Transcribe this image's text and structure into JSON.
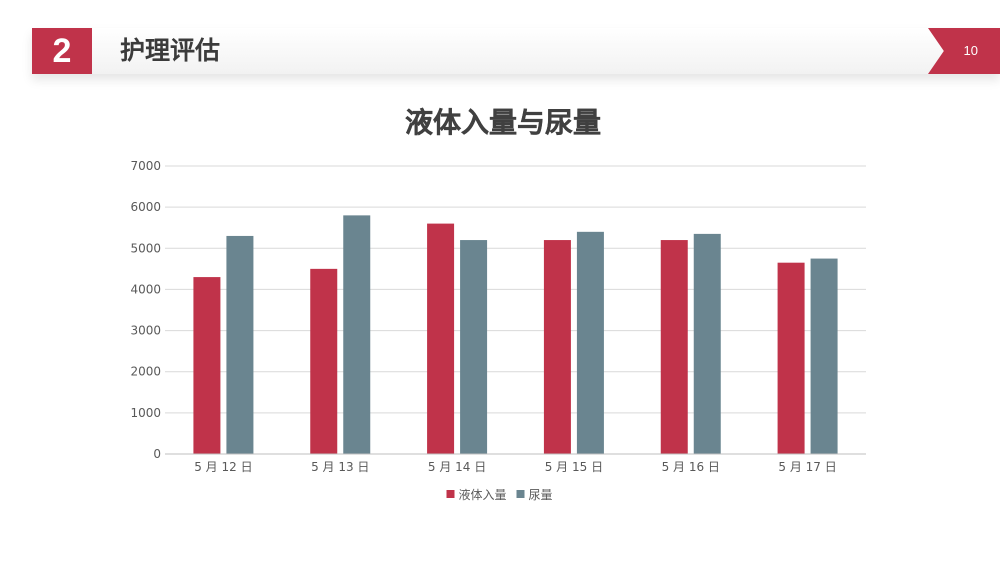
{
  "header": {
    "section_number": "2",
    "title": "护理评估",
    "page_number": "10"
  },
  "colors": {
    "accent": "#c0334a",
    "series_intake": "#c0334a",
    "series_urine": "#6a8590",
    "grid": "#d9d9d9",
    "tick_text": "#595959",
    "title_text": "#404040"
  },
  "chart_data": {
    "type": "bar",
    "title": "液体入量与尿量",
    "categories": [
      "5 月 12 日",
      "5 月 13 日",
      "5 月 14 日",
      "5 月 15 日",
      "5 月 16 日",
      "5 月 17 日"
    ],
    "series": [
      {
        "name": "液体入量",
        "values": [
          4300,
          4500,
          5600,
          5200,
          5200,
          4650
        ]
      },
      {
        "name": "尿量",
        "values": [
          5300,
          5800,
          5200,
          5400,
          5350,
          4750
        ]
      }
    ],
    "ylim": [
      0,
      7000
    ],
    "yticks": [
      0,
      1000,
      2000,
      3000,
      4000,
      5000,
      6000,
      7000
    ],
    "grid": true,
    "legend_position": "bottom",
    "xlabel": "",
    "ylabel": ""
  }
}
